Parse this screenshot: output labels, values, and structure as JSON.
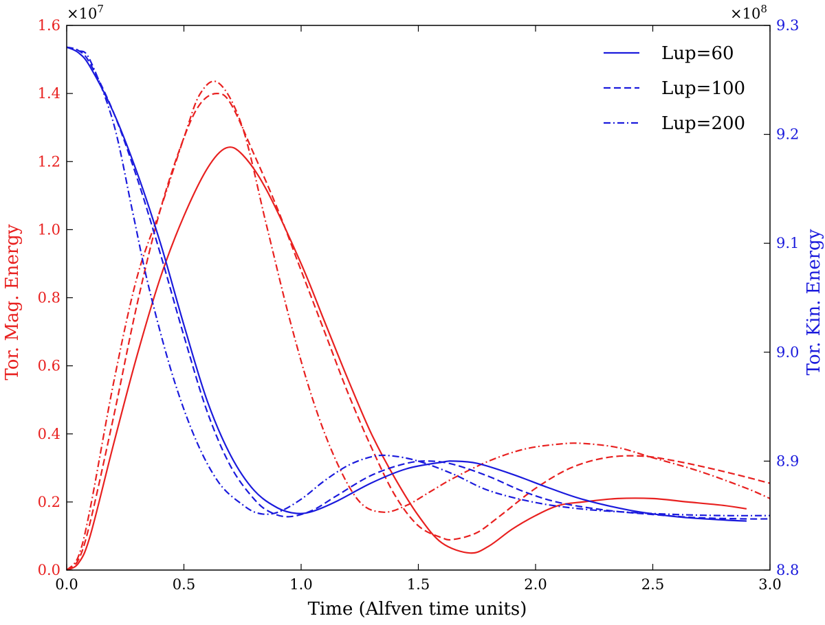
{
  "chart_data": {
    "type": "line",
    "xlabel": "Time (Alfven time units)",
    "xlim": [
      0,
      3.0
    ],
    "x_ticks": [
      "0.0",
      "0.5",
      "1.0",
      "1.5",
      "2.0",
      "2.5",
      "3.0"
    ],
    "y_left": {
      "label": "Tor. Mag. Energy",
      "multiplier": "×10",
      "exponent": "7",
      "lim": [
        0,
        1.6
      ],
      "ticks": [
        "0.0",
        "0.2",
        "0.4",
        "0.6",
        "0.8",
        "1.0",
        "1.2",
        "1.4",
        "1.6"
      ],
      "color": "#e8201f"
    },
    "y_right": {
      "label": "Tor. Kin. Energy",
      "multiplier": "×10",
      "exponent": "8",
      "lim": [
        8.8,
        9.3
      ],
      "ticks": [
        "8.8",
        "8.9",
        "9.0",
        "9.1",
        "9.2",
        "9.3"
      ],
      "color": "#1a1adc"
    },
    "legend": [
      {
        "label": "Lup=60",
        "style": "solid"
      },
      {
        "label": "Lup=100",
        "style": "dashed"
      },
      {
        "label": "Lup=200",
        "style": "dashdot"
      }
    ],
    "series": [
      {
        "name": "Lup=60 magnetic",
        "axis": "left",
        "style": "solid",
        "x": [
          0,
          0.05,
          0.1,
          0.2,
          0.3,
          0.4,
          0.5,
          0.6,
          0.68,
          0.75,
          0.85,
          1.0,
          1.1,
          1.2,
          1.3,
          1.4,
          1.5,
          1.6,
          1.72,
          1.8,
          1.9,
          2.0,
          2.1,
          2.2,
          2.35,
          2.5,
          2.65,
          2.8,
          2.9
        ],
        "values": [
          0,
          0.02,
          0.1,
          0.37,
          0.63,
          0.86,
          1.04,
          1.18,
          1.24,
          1.22,
          1.12,
          0.9,
          0.73,
          0.56,
          0.4,
          0.27,
          0.16,
          0.08,
          0.05,
          0.07,
          0.12,
          0.16,
          0.19,
          0.2,
          0.21,
          0.21,
          0.2,
          0.19,
          0.18
        ]
      },
      {
        "name": "Lup=100 magnetic",
        "axis": "left",
        "style": "dashed",
        "x": [
          0,
          0.05,
          0.1,
          0.2,
          0.3,
          0.4,
          0.5,
          0.57,
          0.64,
          0.7,
          0.8,
          0.9,
          1.0,
          1.1,
          1.2,
          1.3,
          1.4,
          1.5,
          1.6,
          1.65,
          1.75,
          1.85,
          2.0,
          2.15,
          2.3,
          2.45,
          2.6,
          2.8,
          3.0
        ],
        "values": [
          0,
          0.03,
          0.14,
          0.45,
          0.78,
          1.06,
          1.27,
          1.37,
          1.4,
          1.37,
          1.22,
          1.06,
          0.88,
          0.7,
          0.52,
          0.36,
          0.22,
          0.13,
          0.095,
          0.09,
          0.11,
          0.16,
          0.24,
          0.3,
          0.33,
          0.335,
          0.32,
          0.29,
          0.255
        ]
      },
      {
        "name": "Lup=200 magnetic",
        "axis": "left",
        "style": "dashdot",
        "x": [
          0,
          0.05,
          0.1,
          0.2,
          0.3,
          0.4,
          0.5,
          0.57,
          0.65,
          0.75,
          0.85,
          0.95,
          1.05,
          1.15,
          1.25,
          1.35,
          1.45,
          1.55,
          1.65,
          1.8,
          1.95,
          2.1,
          2.2,
          2.35,
          2.5,
          2.7,
          2.9,
          3.0
        ],
        "values": [
          0,
          0.04,
          0.18,
          0.55,
          0.86,
          1.06,
          1.27,
          1.4,
          1.43,
          1.3,
          1.02,
          0.74,
          0.5,
          0.32,
          0.2,
          0.17,
          0.19,
          0.23,
          0.27,
          0.32,
          0.355,
          0.37,
          0.372,
          0.36,
          0.33,
          0.29,
          0.24,
          0.21
        ]
      },
      {
        "name": "Lup=60 kinetic",
        "axis": "right",
        "style": "solid",
        "x": [
          0,
          0.05,
          0.1,
          0.2,
          0.3,
          0.4,
          0.5,
          0.6,
          0.7,
          0.8,
          0.9,
          0.98,
          1.05,
          1.15,
          1.3,
          1.45,
          1.6,
          1.65,
          1.75,
          1.9,
          2.05,
          2.2,
          2.4,
          2.6,
          2.8,
          2.9
        ],
        "values": [
          9.28,
          9.275,
          9.262,
          9.22,
          9.165,
          9.1,
          9.025,
          8.955,
          8.905,
          8.873,
          8.857,
          8.852,
          8.854,
          8.863,
          8.88,
          8.893,
          8.899,
          8.9,
          8.898,
          8.888,
          8.876,
          8.865,
          8.855,
          8.849,
          8.846,
          8.845
        ]
      },
      {
        "name": "Lup=100 kinetic",
        "axis": "right",
        "style": "dashed",
        "x": [
          0,
          0.05,
          0.1,
          0.2,
          0.3,
          0.4,
          0.5,
          0.6,
          0.7,
          0.8,
          0.87,
          0.95,
          1.05,
          1.15,
          1.3,
          1.45,
          1.55,
          1.65,
          1.8,
          1.95,
          2.1,
          2.3,
          2.5,
          2.7,
          2.9,
          3.0
        ],
        "values": [
          9.28,
          9.277,
          9.265,
          9.22,
          9.16,
          9.09,
          9.015,
          8.945,
          8.895,
          8.865,
          8.853,
          8.849,
          8.855,
          8.868,
          8.887,
          8.898,
          8.9,
          8.897,
          8.886,
          8.872,
          8.862,
          8.855,
          8.851,
          8.848,
          8.847,
          8.847
        ]
      },
      {
        "name": "Lup=200 kinetic",
        "axis": "right",
        "style": "dashdot",
        "x": [
          0,
          0.05,
          0.1,
          0.2,
          0.28,
          0.35,
          0.45,
          0.55,
          0.65,
          0.75,
          0.82,
          0.9,
          1.0,
          1.1,
          1.2,
          1.3,
          1.38,
          1.5,
          1.65,
          1.8,
          2.0,
          2.2,
          2.4,
          2.6,
          2.8,
          3.0
        ],
        "values": [
          9.28,
          9.277,
          9.268,
          9.21,
          9.13,
          9.06,
          8.98,
          8.92,
          8.88,
          8.86,
          8.852,
          8.853,
          8.865,
          8.882,
          8.896,
          8.904,
          8.905,
          8.9,
          8.888,
          8.873,
          8.862,
          8.856,
          8.853,
          8.851,
          8.85,
          8.85
        ]
      }
    ]
  }
}
